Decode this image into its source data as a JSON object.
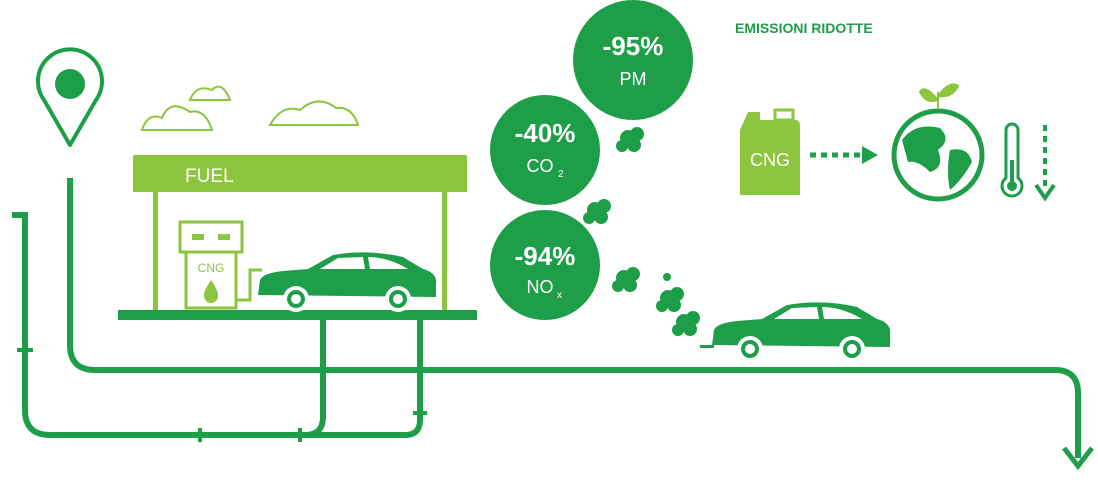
{
  "title": "EMISSIONI RIDOTTE",
  "station": {
    "sign": "FUEL",
    "pump": "CNG"
  },
  "canister": "CNG",
  "reductions": [
    {
      "value": "-95%",
      "pollutant": "PM"
    },
    {
      "value": "-40%",
      "pollutant": "CO",
      "subscript": "2"
    },
    {
      "value": "-94%",
      "pollutant": "NO",
      "subscript": "x"
    }
  ]
}
